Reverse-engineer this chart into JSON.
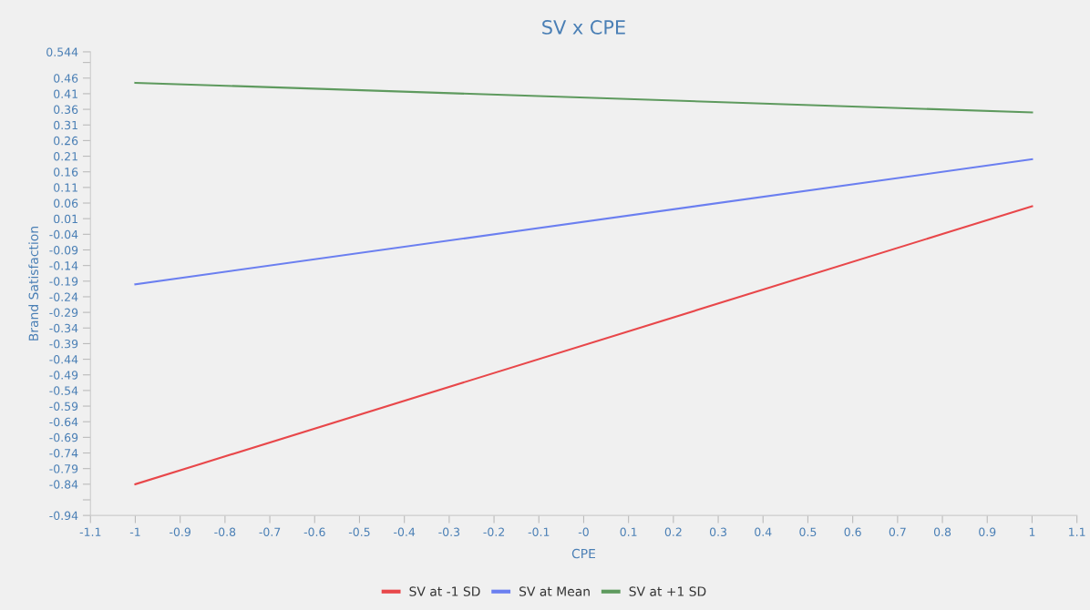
{
  "chart_data": {
    "type": "line",
    "title": "SV x CPE",
    "xlabel": "CPE",
    "ylabel": "Brand Satisfaction",
    "x": [
      -1,
      1
    ],
    "series": [
      {
        "name": "SV at -1 SD",
        "color": "#e8474a",
        "values": [
          -0.84,
          0.05
        ]
      },
      {
        "name": "SV at Mean",
        "color": "#6b7ff0",
        "values": [
          -0.2,
          0.2
        ]
      },
      {
        "name": "SV at +1 SD",
        "color": "#5e9a5e",
        "values": [
          0.445,
          0.35
        ]
      }
    ],
    "xlim": [
      -1.1,
      1.1
    ],
    "xticks": [
      -1.1,
      -1,
      -0.9,
      -0.8,
      -0.7,
      -0.6,
      -0.5,
      -0.4,
      -0.3,
      -0.2,
      -0.1,
      {
        "value": 0,
        "label": "-0"
      },
      0.1,
      0.2,
      0.3,
      0.4,
      0.5,
      0.6,
      0.7,
      0.8,
      0.9,
      1,
      1.1
    ],
    "ylim": [
      -0.94,
      0.544
    ],
    "yticks": [
      -0.94,
      {
        "value": -0.89,
        "label": null
      },
      -0.84,
      -0.79,
      -0.74,
      -0.69,
      -0.64,
      -0.59,
      -0.54,
      -0.49,
      -0.44,
      -0.39,
      -0.34,
      -0.29,
      -0.24,
      -0.19,
      -0.14,
      -0.09,
      -0.04,
      0.01,
      0.06,
      0.11,
      0.16,
      0.21,
      0.26,
      0.31,
      0.36,
      0.41,
      0.46,
      {
        "value": 0.51,
        "label": null
      },
      0.544
    ],
    "grid": false,
    "legend": "bottom",
    "marker": "none",
    "line_style": "solid"
  }
}
